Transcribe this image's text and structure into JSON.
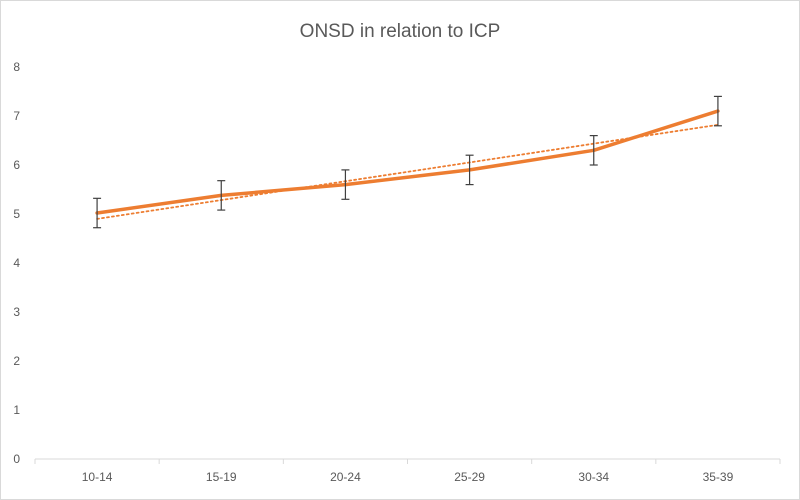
{
  "chart_data": {
    "type": "line",
    "title": "ONSD in relation to ICP",
    "xlabel": "",
    "ylabel": "",
    "categories": [
      "10-14",
      "15-19",
      "20-24",
      "25-29",
      "30-34",
      "35-39"
    ],
    "ylim": [
      0,
      8
    ],
    "yticks": [
      "0",
      "1",
      "2",
      "3",
      "4",
      "5",
      "6",
      "7",
      "8"
    ],
    "grid": false,
    "legend": "none",
    "series": [
      {
        "values": [
          5.02,
          5.38,
          5.6,
          5.9,
          6.3,
          7.1
        ],
        "error": [
          0.3,
          0.3,
          0.3,
          0.3,
          0.3,
          0.3
        ],
        "color": "#ED7D31"
      }
    ],
    "trendline": {
      "type": "linear",
      "style": "dotted",
      "color": "#ED7D31",
      "start": 4.9,
      "end": 6.82
    },
    "colors": {
      "line": "#ED7D31",
      "error_bar": "#404040",
      "axis": "#d9d9d9",
      "text": "#595959"
    }
  }
}
